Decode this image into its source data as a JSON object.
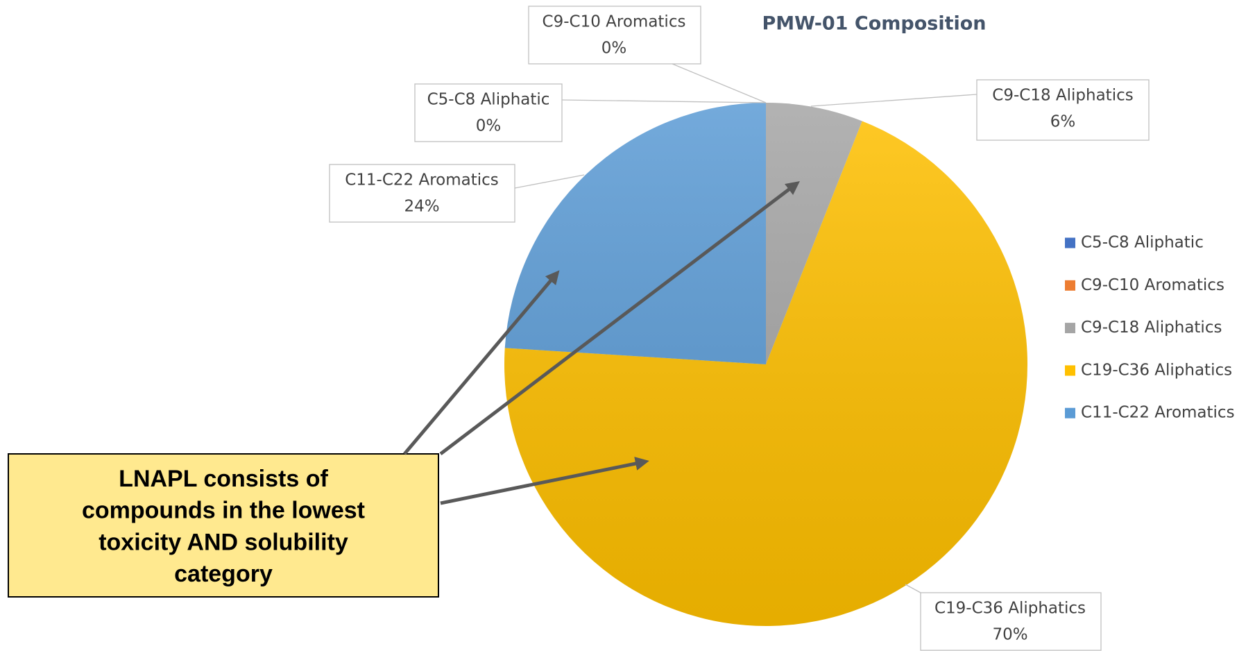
{
  "chart_data": {
    "type": "pie",
    "title": "PMW-01 Composition",
    "categories": [
      "C5-C8 Aliphatic",
      "C9-C10 Aromatics",
      "C9-C18 Aliphatics",
      "C19-C36 Aliphatics",
      "C11-C22 Aromatics"
    ],
    "values": [
      0,
      0,
      6,
      70,
      24
    ],
    "value_labels": [
      "0%",
      "0%",
      "6%",
      "70%",
      "24%"
    ],
    "colors": [
      "#4472c4",
      "#ed7d31",
      "#a5a5a5",
      "#ffc000",
      "#5b9bd5"
    ],
    "legend": "right",
    "annotation_lines": [
      "LNAPL consists of",
      "compounds in the lowest",
      "toxicity AND solubility",
      "category"
    ]
  }
}
